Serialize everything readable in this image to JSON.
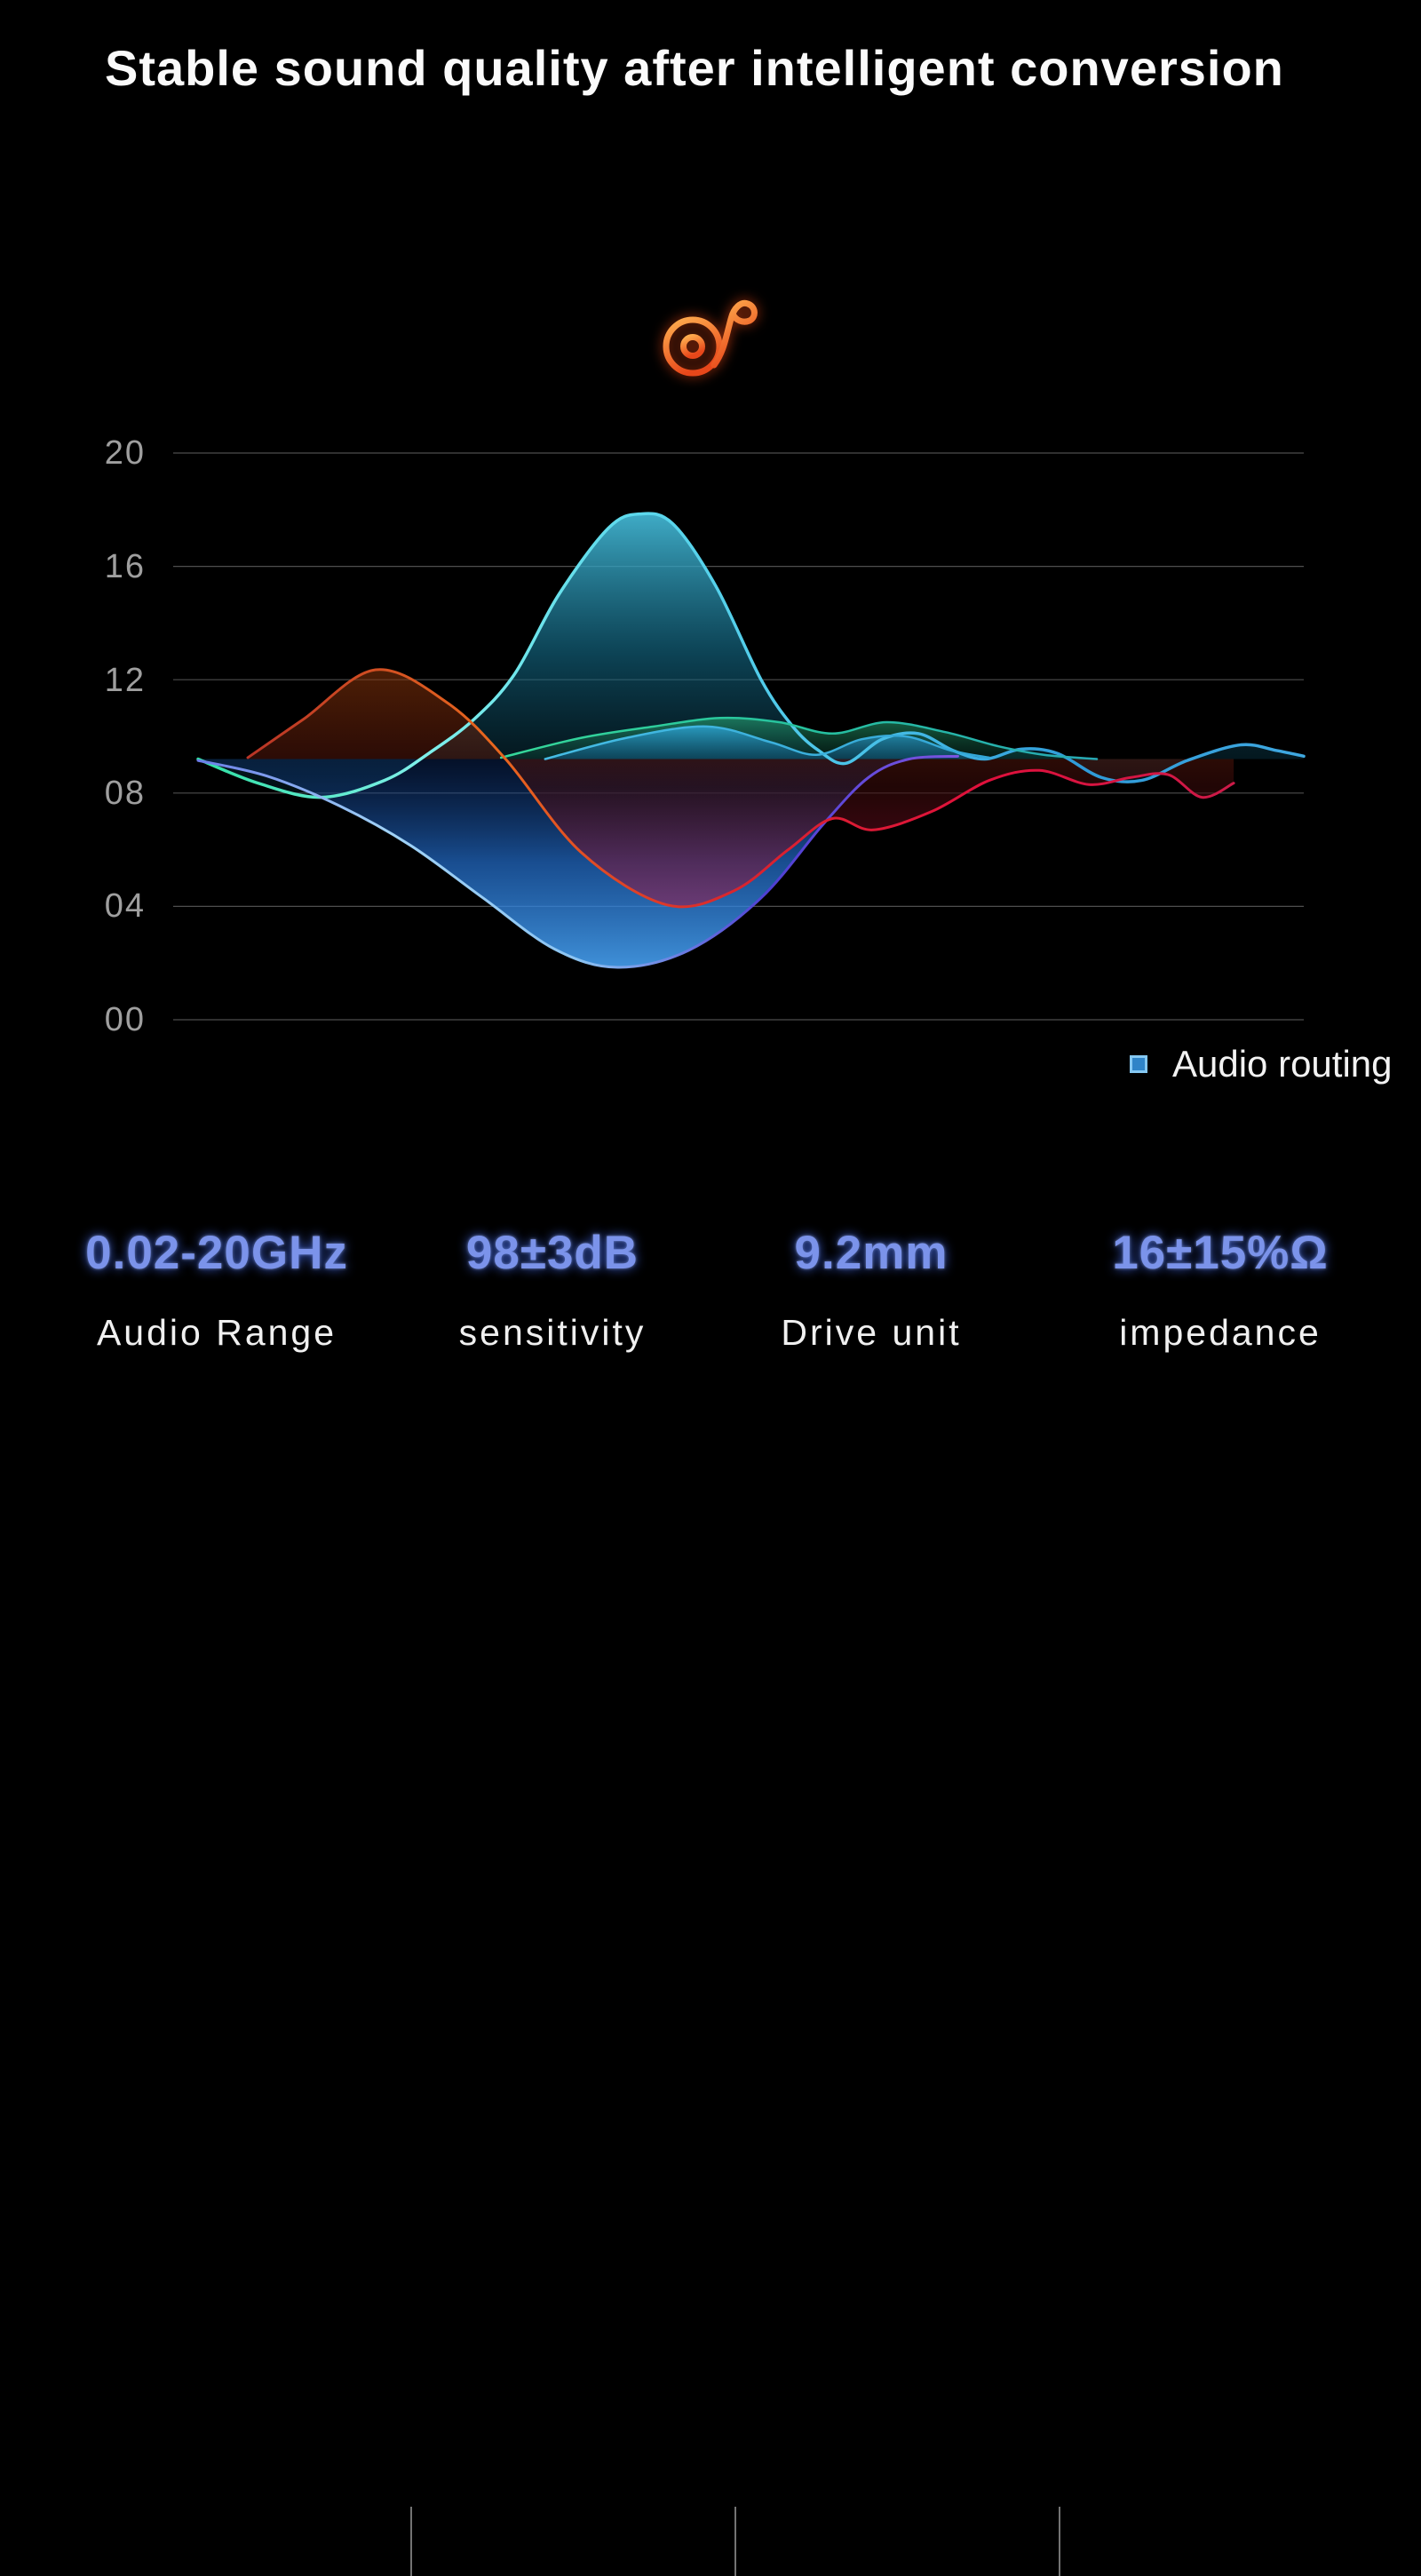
{
  "title": "Stable sound quality after intelligent conversion",
  "icon": {
    "name": "music-note",
    "description": "outlined disc with eighth-note stem"
  },
  "colors": {
    "background": "#000000",
    "title": "#fafafa",
    "tick": "#9f9f9f",
    "spec_value": "#7b93ea",
    "spec_label": "#f0f0f0",
    "legend_text": "#f2f2f2",
    "legend_swatch": "#2f84c8",
    "legend_swatch_border": "#85c8f2",
    "divider": "#9a9a9a",
    "icon_light": "#ffb050",
    "icon_dark": "#e8471a"
  },
  "chart_data": {
    "type": "area",
    "title": "",
    "xlabel": "",
    "ylabel": "",
    "ylim": [
      0,
      20
    ],
    "grid": true,
    "grid_color": "#5c5c5c",
    "baseline_value": 9.2,
    "legend_position": "bottom-right",
    "yticks": [
      {
        "label": "20",
        "value": 20
      },
      {
        "label": "16",
        "value": 16
      },
      {
        "label": "12",
        "value": 12
      },
      {
        "label": "08",
        "value": 8
      },
      {
        "label": "04",
        "value": 4
      },
      {
        "label": "00",
        "value": 0
      }
    ],
    "legend": [
      {
        "label": "Audio routing",
        "color": "#4aa2e4"
      }
    ],
    "series": [
      {
        "name": "audio-routing",
        "width": 3.5,
        "stroke": [
          "#2fe0a2",
          "#7ff0ea",
          "#5cd8ec",
          "#49c2e8",
          "#2f9ad8",
          "#3fa8e0"
        ],
        "fill": [
          "rgba(70,190,220,0.90)",
          "rgba(20,110,140,0.60)",
          "rgba(8,45,60,0.30)"
        ],
        "points": [
          [
            2.2,
            9.2
          ],
          [
            7.5,
            8.35
          ],
          [
            13.1,
            7.85
          ],
          [
            18.7,
            8.45
          ],
          [
            22.6,
            9.4
          ],
          [
            26.6,
            10.6
          ],
          [
            30.2,
            12.2
          ],
          [
            34.1,
            15.0
          ],
          [
            38.5,
            17.35
          ],
          [
            41.3,
            17.85
          ],
          [
            44.2,
            17.5
          ],
          [
            48,
            15.3
          ],
          [
            52,
            12.0
          ],
          [
            54.8,
            10.35
          ],
          [
            57.1,
            9.5
          ],
          [
            59.5,
            9.05
          ],
          [
            62.7,
            9.9
          ],
          [
            65.9,
            10.1
          ],
          [
            69,
            9.5
          ],
          [
            71.8,
            9.2
          ],
          [
            75,
            9.55
          ],
          [
            78.2,
            9.4
          ],
          [
            82.1,
            8.55
          ],
          [
            85.7,
            8.45
          ],
          [
            89.7,
            9.15
          ],
          [
            94.4,
            9.7
          ],
          [
            97.6,
            9.5
          ],
          [
            100,
            9.3
          ]
        ]
      },
      {
        "name": "green-band",
        "width": 2.5,
        "stroke": [
          "#36d89a",
          "#26c29e",
          "#27a8b4"
        ],
        "fill": [
          "rgba(40,170,120,0.60)",
          "rgba(12,70,52,0.35)"
        ],
        "points": [
          [
            29,
            9.25
          ],
          [
            36.1,
            9.95
          ],
          [
            42.5,
            10.35
          ],
          [
            48.4,
            10.65
          ],
          [
            53.6,
            10.5
          ],
          [
            58.3,
            10.1
          ],
          [
            63.1,
            10.5
          ],
          [
            68.3,
            10.15
          ],
          [
            73,
            9.65
          ],
          [
            77,
            9.35
          ],
          [
            81.7,
            9.2
          ]
        ]
      },
      {
        "name": "mid-blue-band",
        "width": 2.5,
        "stroke": [
          "#45bce4",
          "#33a6d6"
        ],
        "fill": [
          "rgba(45,165,215,0.80)",
          "rgba(18,90,130,0.55)"
        ],
        "points": [
          [
            32.9,
            9.2
          ],
          [
            40.1,
            9.95
          ],
          [
            47.2,
            10.35
          ],
          [
            52.8,
            9.8
          ],
          [
            56.9,
            9.35
          ],
          [
            60.9,
            9.9
          ],
          [
            64.8,
            10.0
          ],
          [
            68.8,
            9.5
          ],
          [
            72.2,
            9.25
          ]
        ]
      },
      {
        "name": "deep-blue",
        "width": 3,
        "stroke": [
          "#6b7de8",
          "#a0d2f6",
          "#8cc4f2",
          "#4e3fd2",
          "#7a55e0"
        ],
        "fill": [
          "rgba(12,45,110,0.35)",
          "rgba(35,110,205,0.70)",
          "rgba(70,160,240,0.90)"
        ],
        "points": [
          [
            2.2,
            9.15
          ],
          [
            8.3,
            8.6
          ],
          [
            14.7,
            7.55
          ],
          [
            21,
            6.15
          ],
          [
            27.4,
            4.3
          ],
          [
            33.7,
            2.5
          ],
          [
            39.3,
            1.85
          ],
          [
            45.6,
            2.45
          ],
          [
            52,
            4.3
          ],
          [
            57.5,
            6.9
          ],
          [
            61.5,
            8.55
          ],
          [
            65.1,
            9.2
          ],
          [
            69.4,
            9.3
          ]
        ]
      },
      {
        "name": "red-band",
        "width": 3,
        "stroke": [
          "#b83426",
          "#e8671e",
          "#d8242e",
          "#e0103c",
          "#cc1a48"
        ],
        "fill": [
          "rgba(140,55,10,0.55)",
          "rgba(60,10,10,0.55)",
          "rgba(170,15,60,0.50)"
        ],
        "points": [
          [
            6.6,
            9.25
          ],
          [
            11.5,
            10.6
          ],
          [
            17.9,
            12.35
          ],
          [
            24.2,
            11.2
          ],
          [
            29.4,
            9.2
          ],
          [
            36.1,
            5.9
          ],
          [
            43.7,
            4.05
          ],
          [
            49.6,
            4.55
          ],
          [
            54.4,
            6.0
          ],
          [
            58.3,
            7.1
          ],
          [
            61.9,
            6.7
          ],
          [
            67.1,
            7.35
          ],
          [
            72.2,
            8.45
          ],
          [
            76.6,
            8.8
          ],
          [
            81,
            8.3
          ],
          [
            84.7,
            8.55
          ],
          [
            88,
            8.65
          ],
          [
            91,
            7.85
          ],
          [
            93.8,
            8.35
          ]
        ]
      }
    ]
  },
  "specs": [
    {
      "value": "0.02-20GHz",
      "label": "Audio Range"
    },
    {
      "value": "98±3dB",
      "label": "sensitivity"
    },
    {
      "value": "9.2mm",
      "label": "Drive unit"
    },
    {
      "value": "16±15%Ω",
      "label": "impedance"
    }
  ]
}
